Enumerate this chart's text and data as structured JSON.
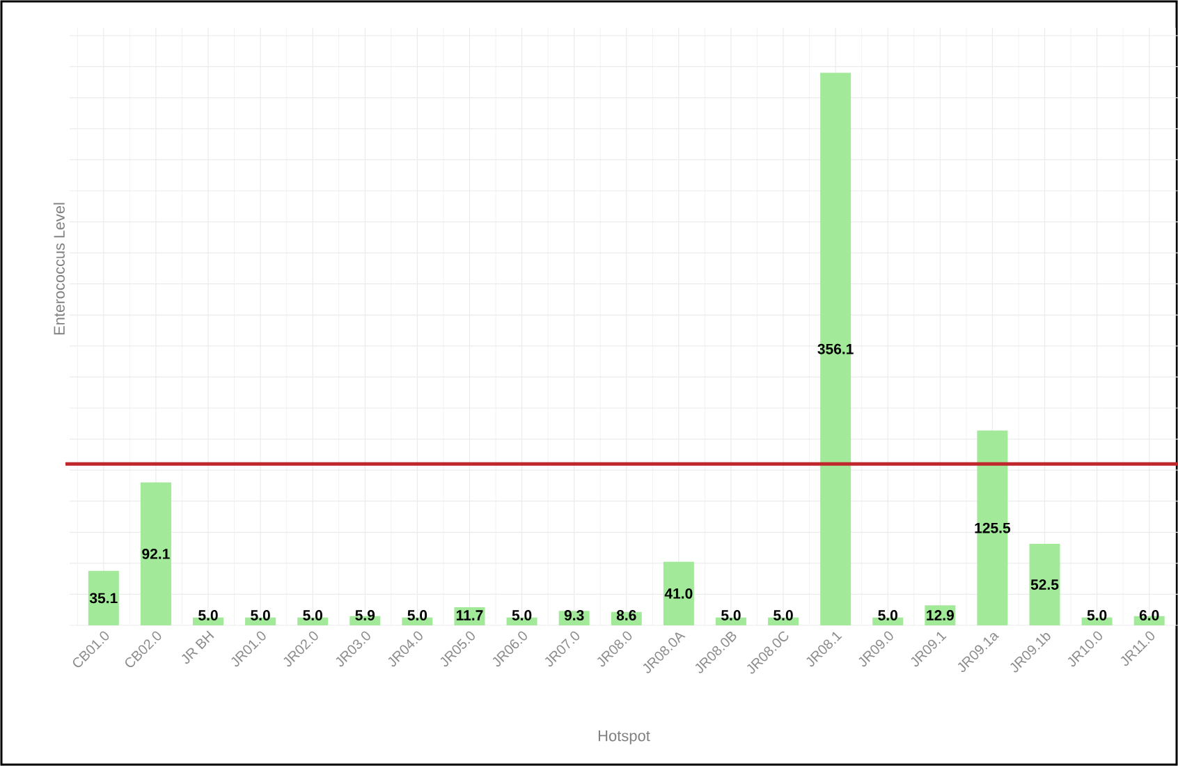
{
  "chart_data": {
    "type": "bar",
    "xlabel": "Hotspot",
    "ylabel": "Enterococcus Level",
    "categories": [
      "CB01.0",
      "CB02.0",
      "JR BH",
      "JR01.0",
      "JR02.0",
      "JR03.0",
      "JR04.0",
      "JR05.0",
      "JR06.0",
      "JR07.0",
      "JR08.0",
      "JR08.0A",
      "JR08.0B",
      "JR08.0C",
      "JR08.1",
      "JR09.0",
      "JR09.1",
      "JR09.1a",
      "JR09.1b",
      "JR10.0",
      "JR11.0"
    ],
    "values": [
      35.1,
      92.1,
      5.0,
      5.0,
      5.0,
      5.9,
      5.0,
      11.7,
      5.0,
      9.3,
      8.6,
      41.0,
      5.0,
      5.0,
      356.1,
      5.0,
      12.9,
      125.5,
      52.5,
      5.0,
      6.0
    ],
    "value_labels": [
      "35.1",
      "92.1",
      "5.0",
      "5.0",
      "5.0",
      "5.9",
      "5.0",
      "11.7",
      "5.0",
      "9.3",
      "8.6",
      "41.0",
      "5.0",
      "5.0",
      "356.1",
      "5.0",
      "12.9",
      "125.5",
      "52.5",
      "5.0",
      "6.0"
    ],
    "color": "#a3e99a",
    "ylim": [
      0,
      385
    ],
    "yticks": [
      {
        "value": 0,
        "label": null
      },
      {
        "value": 20,
        "label": null
      },
      {
        "value": 40,
        "label": null
      },
      {
        "value": 60,
        "label": null
      },
      {
        "value": 80,
        "label": null
      },
      {
        "value": 100,
        "label": null
      },
      {
        "value": 120,
        "label": null
      },
      {
        "value": 140,
        "label": null
      },
      {
        "value": 160,
        "label": null
      },
      {
        "value": 180,
        "label": null
      },
      {
        "value": 200,
        "label": null
      },
      {
        "value": 220,
        "label": null
      },
      {
        "value": 240,
        "label": null
      },
      {
        "value": 260,
        "label": null
      },
      {
        "value": 280,
        "label": null
      },
      {
        "value": 300,
        "label": null
      },
      {
        "value": 320,
        "label": null
      },
      {
        "value": 340,
        "label": null
      },
      {
        "value": 360,
        "label": null
      },
      {
        "value": 380,
        "label": null
      }
    ],
    "tick_labels": "x",
    "grid": true,
    "ref_lines": [
      {
        "axis": "y",
        "value": 104,
        "color": "#c0272d"
      }
    ]
  }
}
